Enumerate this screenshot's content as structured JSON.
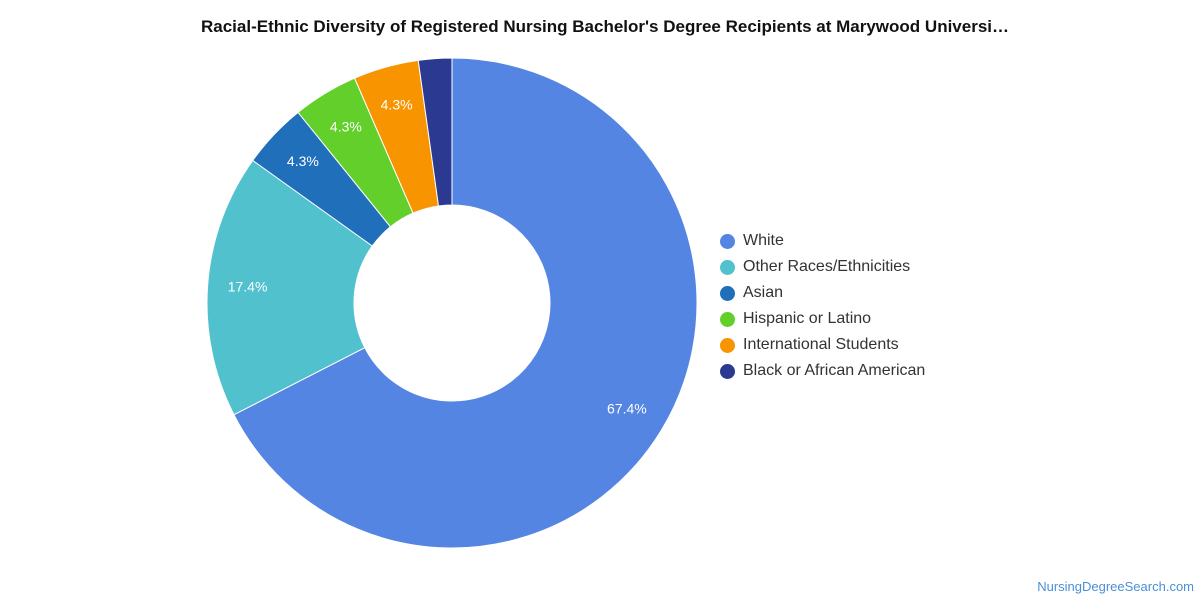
{
  "chart_data": {
    "type": "pie",
    "subtype": "donut",
    "title": "Racial-Ethnic Diversity of Registered Nursing Bachelor's Degree Recipients at Marywood Universi…",
    "legend_position": "right",
    "categories": [
      "White",
      "Other Races/Ethnicities",
      "Asian",
      "Hispanic or Latino",
      "International Students",
      "Black or African American"
    ],
    "values": [
      67.4,
      17.4,
      4.3,
      4.3,
      4.3,
      2.2
    ],
    "value_labels": [
      "67.4%",
      "17.4%",
      "4.3%",
      "4.3%",
      "4.3%",
      ""
    ],
    "colors": [
      "#5585e3",
      "#51c1ce",
      "#1f6fba",
      "#63cf2b",
      "#f79400",
      "#2b3990"
    ]
  },
  "watermark": "NursingDegreeSearch.com"
}
